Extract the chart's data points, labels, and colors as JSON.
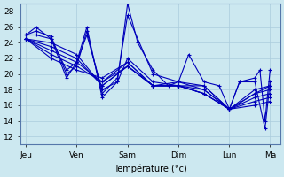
{
  "xlabel": "Température (°c)",
  "day_labels": [
    "Jeu",
    "Ven",
    "Sam",
    "Dim",
    "Lun",
    "Ma"
  ],
  "day_x": [
    0,
    1,
    2,
    3,
    4,
    4.8
  ],
  "ylim": [
    11,
    29
  ],
  "yticks": [
    12,
    14,
    16,
    18,
    20,
    22,
    24,
    26,
    28
  ],
  "bg_color": "#cce8f0",
  "grid_color": "#aaccdd",
  "line_color": "#0000bb",
  "marker": "+",
  "series": [
    {
      "x": [
        0,
        0.2,
        0.5,
        0.8,
        1.0,
        1.2,
        1.5,
        1.8,
        2.0,
        2.2,
        2.5,
        2.8,
        3.0,
        3.2,
        3.5,
        3.8,
        4.0,
        4.2,
        4.5,
        4.6,
        4.7,
        4.8
      ],
      "y": [
        25.0,
        26.0,
        24.5,
        19.5,
        21.5,
        26.0,
        17.0,
        19.0,
        29.0,
        24.0,
        20.5,
        18.5,
        19.0,
        22.5,
        19.0,
        18.5,
        15.5,
        19.0,
        19.5,
        20.5,
        14.0,
        20.5
      ]
    },
    {
      "x": [
        0,
        0.2,
        0.5,
        0.8,
        1.0,
        1.2,
        1.5,
        1.8,
        2.0,
        2.5,
        3.0,
        3.5,
        4.0,
        4.2,
        4.5,
        4.7,
        4.8
      ],
      "y": [
        25.0,
        25.5,
        24.8,
        20.0,
        21.0,
        25.5,
        17.5,
        19.5,
        27.5,
        20.0,
        19.0,
        18.5,
        15.5,
        19.0,
        19.0,
        13.0,
        19.0
      ]
    },
    {
      "x": [
        0,
        0.2,
        0.5,
        0.8,
        1.0,
        1.2,
        1.5,
        1.8,
        2.0,
        2.5,
        3.0,
        3.5,
        4.0,
        4.5,
        4.8
      ],
      "y": [
        25.0,
        25.0,
        24.5,
        20.5,
        21.5,
        25.0,
        18.0,
        19.0,
        22.0,
        19.0,
        18.5,
        18.5,
        15.5,
        18.0,
        18.5
      ]
    },
    {
      "x": [
        0,
        0.5,
        1.0,
        1.5,
        2.0,
        2.5,
        3.0,
        3.5,
        4.0,
        4.5,
        4.8
      ],
      "y": [
        24.5,
        24.0,
        22.5,
        18.5,
        21.0,
        18.5,
        19.0,
        18.0,
        15.5,
        17.5,
        18.5
      ]
    },
    {
      "x": [
        0,
        0.5,
        1.0,
        1.5,
        2.0,
        2.5,
        3.0,
        3.5,
        4.0,
        4.5,
        4.8
      ],
      "y": [
        24.5,
        23.5,
        22.0,
        18.5,
        21.0,
        18.5,
        18.5,
        18.0,
        15.5,
        17.5,
        18.0
      ]
    },
    {
      "x": [
        0,
        0.5,
        1.0,
        1.5,
        2.0,
        2.5,
        3.0,
        3.5,
        4.0,
        4.5,
        4.8
      ],
      "y": [
        24.5,
        23.0,
        21.5,
        19.0,
        21.0,
        18.5,
        18.5,
        17.5,
        15.5,
        17.0,
        17.5
      ]
    },
    {
      "x": [
        0,
        0.5,
        1.0,
        1.5,
        2.0,
        2.5,
        3.0,
        3.5,
        4.0,
        4.5,
        4.8
      ],
      "y": [
        24.5,
        22.5,
        21.0,
        19.0,
        21.5,
        18.5,
        18.5,
        17.5,
        15.5,
        16.5,
        17.0
      ]
    },
    {
      "x": [
        0,
        0.5,
        1.0,
        1.5,
        2.0,
        2.5,
        3.0,
        3.5,
        4.0,
        4.5,
        4.8
      ],
      "y": [
        24.5,
        22.0,
        20.5,
        19.5,
        21.5,
        18.5,
        18.5,
        17.5,
        15.5,
        16.0,
        16.5
      ]
    }
  ]
}
